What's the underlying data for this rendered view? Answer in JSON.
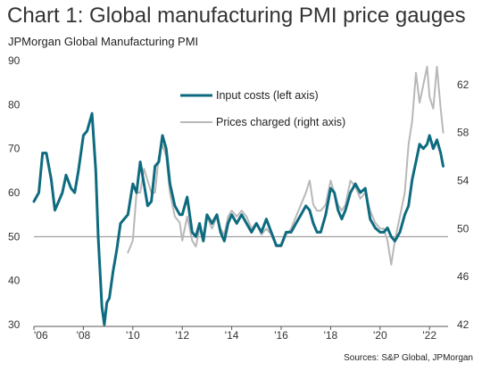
{
  "chart_data": {
    "type": "line",
    "title": "Chart 1: Global manufacturing PMI price gauges",
    "subtitle": "JPMorgan Global Manufacturing PMI",
    "source": "Sources: S&P Global, JPMorgan",
    "x_range": [
      2006.0,
      2022.75
    ],
    "x_tick_values": [
      2006,
      2008,
      2010,
      2012,
      2014,
      2016,
      2018,
      2020,
      2022
    ],
    "x_tick_labels": [
      "'06",
      "'08",
      "'10",
      "'12",
      "'14",
      "'16",
      "'18",
      "'20",
      "'22"
    ],
    "y_left_range": [
      30,
      90
    ],
    "y_left_ticks": [
      "30",
      "40",
      "50",
      "60",
      "70",
      "80",
      "90"
    ],
    "y_right_range": [
      42,
      64
    ],
    "y_right_ticks": [
      "42",
      "46",
      "50",
      "54",
      "58",
      "62"
    ],
    "reference_line_left": 50,
    "grid": false,
    "legend_position": "top-center",
    "series": [
      {
        "name": "Input costs (left axis)",
        "axis": "left",
        "color": "#0e6b7f",
        "x": [
          2006.0,
          2006.2,
          2006.35,
          2006.5,
          2006.7,
          2006.85,
          2007.0,
          2007.15,
          2007.3,
          2007.5,
          2007.65,
          2007.8,
          2008.0,
          2008.15,
          2008.35,
          2008.5,
          2008.6,
          2008.75,
          2008.85,
          2008.95,
          2009.05,
          2009.2,
          2009.35,
          2009.5,
          2009.65,
          2009.8,
          2010.0,
          2010.15,
          2010.3,
          2010.45,
          2010.6,
          2010.75,
          2010.9,
          2011.05,
          2011.2,
          2011.35,
          2011.5,
          2011.7,
          2011.9,
          2012.0,
          2012.2,
          2012.4,
          2012.55,
          2012.7,
          2012.85,
          2013.0,
          2013.2,
          2013.4,
          2013.55,
          2013.7,
          2013.85,
          2014.0,
          2014.2,
          2014.4,
          2014.6,
          2014.8,
          2015.0,
          2015.2,
          2015.4,
          2015.6,
          2015.8,
          2016.0,
          2016.2,
          2016.4,
          2016.6,
          2016.8,
          2017.0,
          2017.15,
          2017.3,
          2017.45,
          2017.6,
          2017.8,
          2018.0,
          2018.15,
          2018.3,
          2018.45,
          2018.6,
          2018.8,
          2019.0,
          2019.2,
          2019.4,
          2019.6,
          2019.8,
          2020.0,
          2020.15,
          2020.3,
          2020.45,
          2020.6,
          2020.8,
          2021.0,
          2021.15,
          2021.3,
          2021.45,
          2021.6,
          2021.75,
          2021.9,
          2022.0,
          2022.15,
          2022.3,
          2022.45,
          2022.55
        ],
        "values": [
          58,
          60,
          69,
          69,
          63,
          56,
          58,
          60,
          64,
          61,
          60,
          65,
          73,
          74,
          78,
          65,
          50,
          34,
          30,
          35,
          36,
          42,
          47,
          53,
          54,
          55,
          62,
          60,
          67,
          62,
          57,
          58,
          66,
          67,
          73,
          70,
          62,
          57,
          55,
          55,
          59,
          51,
          50,
          53,
          49,
          55,
          53,
          55,
          51,
          49,
          53,
          55,
          53,
          55,
          53,
          51,
          53,
          51,
          54,
          51,
          48,
          48,
          51,
          51,
          53,
          55,
          57,
          56,
          53,
          51,
          51,
          55,
          61,
          60,
          56,
          54,
          56,
          60,
          62,
          60,
          61,
          54,
          52,
          51,
          51,
          52,
          50,
          49,
          51,
          55,
          57,
          63,
          67,
          71,
          70,
          71,
          73,
          70,
          72,
          69,
          66
        ]
      },
      {
        "name": "Prices charged (right axis)",
        "axis": "right",
        "color": "#b8b8b8",
        "x": [
          2009.8,
          2010.0,
          2010.15,
          2010.3,
          2010.45,
          2010.6,
          2010.75,
          2010.9,
          2011.05,
          2011.2,
          2011.35,
          2011.5,
          2011.7,
          2011.9,
          2012.0,
          2012.2,
          2012.4,
          2012.55,
          2012.7,
          2012.85,
          2013.0,
          2013.2,
          2013.4,
          2013.55,
          2013.7,
          2013.85,
          2014.0,
          2014.2,
          2014.4,
          2014.6,
          2014.8,
          2015.0,
          2015.2,
          2015.4,
          2015.6,
          2015.8,
          2016.0,
          2016.2,
          2016.4,
          2016.6,
          2016.8,
          2017.0,
          2017.15,
          2017.3,
          2017.45,
          2017.6,
          2017.8,
          2018.0,
          2018.15,
          2018.3,
          2018.45,
          2018.6,
          2018.8,
          2019.0,
          2019.2,
          2019.4,
          2019.6,
          2019.8,
          2020.0,
          2020.15,
          2020.3,
          2020.45,
          2020.6,
          2020.8,
          2021.0,
          2021.15,
          2021.3,
          2021.45,
          2021.6,
          2021.75,
          2021.9,
          2022.0,
          2022.15,
          2022.3,
          2022.45,
          2022.55
        ],
        "values": [
          48,
          49,
          53,
          53,
          55,
          54,
          53,
          53,
          56,
          57,
          56,
          53,
          51,
          50.5,
          49,
          51,
          49,
          48.5,
          50,
          49,
          51,
          50,
          51,
          50,
          49.5,
          51,
          51.5,
          51,
          51.5,
          51,
          50,
          50.5,
          49.5,
          50,
          49.5,
          48.5,
          48.5,
          49.5,
          50,
          51,
          52,
          53,
          54,
          52,
          51.5,
          51.5,
          52,
          54,
          53,
          52,
          51.5,
          52,
          54,
          53.5,
          52.5,
          53,
          51.5,
          50.5,
          50,
          50,
          49,
          47,
          49,
          51,
          53,
          57,
          59,
          63,
          60.5,
          62,
          63.5,
          61,
          60,
          63.5,
          60,
          58
        ]
      }
    ]
  }
}
